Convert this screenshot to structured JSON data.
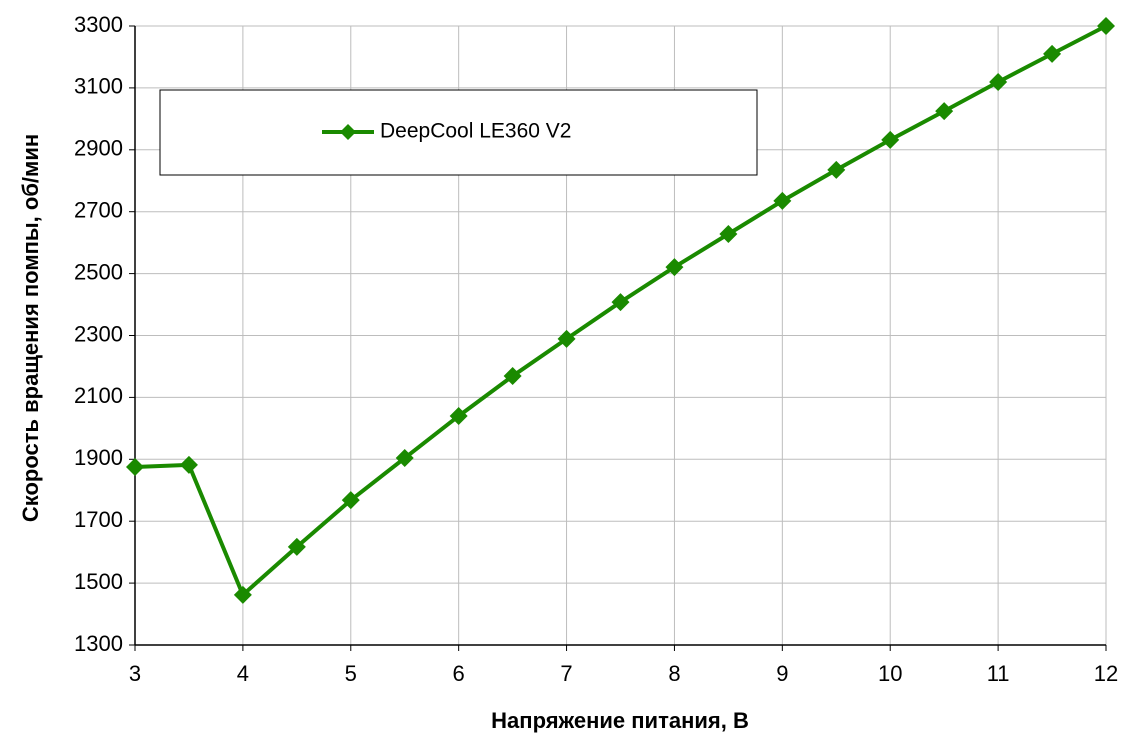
{
  "chart_data": {
    "type": "line",
    "x_label": "Напряжение питания, В",
    "y_label": "Скорость вращения помпы, об/мин",
    "x": [
      3,
      3.5,
      4,
      4.5,
      5,
      5.5,
      6,
      6.5,
      7,
      7.5,
      8,
      8.5,
      9,
      9.5,
      10,
      10.5,
      11,
      11.5,
      12
    ],
    "series": [
      {
        "name": "DeepCool LE360 V2",
        "color": "#1a8a00",
        "values": [
          1875,
          1882,
          1462,
          1617,
          1768,
          1904,
          2040,
          2169,
          2289,
          2408,
          2521,
          2628,
          2735,
          2835,
          2932,
          3025,
          3119,
          3210,
          3300
        ]
      }
    ],
    "xlim": [
      3,
      12
    ],
    "xticks": [
      3,
      4,
      5,
      6,
      7,
      8,
      9,
      10,
      11,
      12
    ],
    "ylim": [
      1300,
      3300
    ],
    "yticks": [
      1300,
      1500,
      1700,
      1900,
      2100,
      2300,
      2500,
      2700,
      2900,
      3100,
      3300
    ],
    "grid": true,
    "legend": "upper left"
  }
}
